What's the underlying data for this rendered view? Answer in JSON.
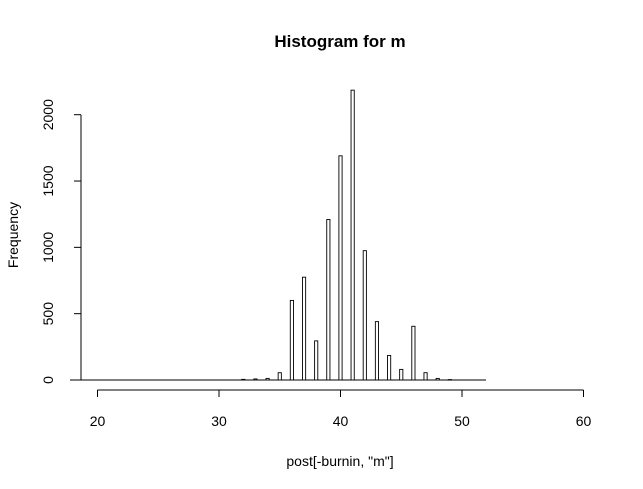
{
  "chart_data": {
    "type": "bar",
    "title": "Histogram for m",
    "xlabel": "post[-burnin, \"m\"]",
    "ylabel": "Frequency",
    "xlim": [
      20,
      60
    ],
    "ylim": [
      0,
      2200
    ],
    "xticks": [
      20,
      30,
      40,
      50,
      60
    ],
    "yticks": [
      0,
      500,
      1000,
      1500,
      2000
    ],
    "grid": false,
    "bar_style": {
      "fill": "#ffffff",
      "stroke": "#000000"
    },
    "bins": [
      {
        "x": 32,
        "count": 5
      },
      {
        "x": 33,
        "count": 8
      },
      {
        "x": 34,
        "count": 12
      },
      {
        "x": 35,
        "count": 55
      },
      {
        "x": 36,
        "count": 600
      },
      {
        "x": 37,
        "count": 775
      },
      {
        "x": 38,
        "count": 295
      },
      {
        "x": 39,
        "count": 1210
      },
      {
        "x": 40,
        "count": 1690
      },
      {
        "x": 41,
        "count": 2185
      },
      {
        "x": 42,
        "count": 975
      },
      {
        "x": 43,
        "count": 440
      },
      {
        "x": 44,
        "count": 185
      },
      {
        "x": 45,
        "count": 80
      },
      {
        "x": 46,
        "count": 405
      },
      {
        "x": 47,
        "count": 55
      },
      {
        "x": 48,
        "count": 12
      },
      {
        "x": 49,
        "count": 3
      }
    ]
  }
}
